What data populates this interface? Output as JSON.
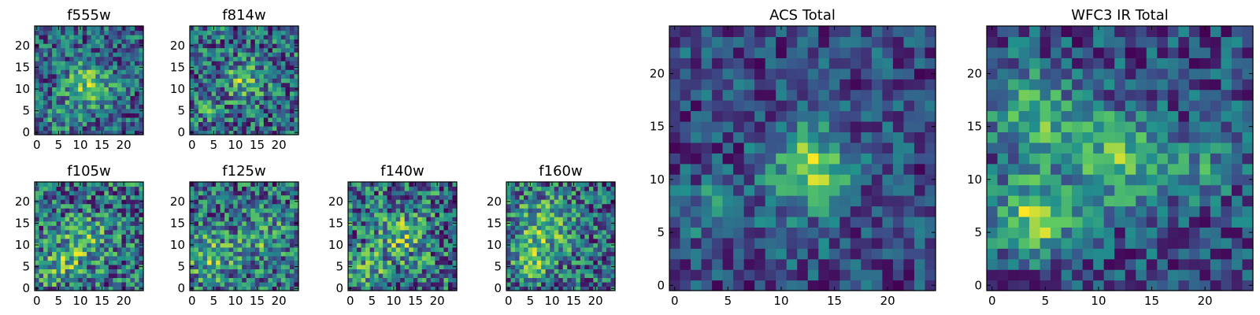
{
  "figure": {
    "colormap": "viridis",
    "colormap_stops": [
      "#440154",
      "#3b528b",
      "#21908d",
      "#5dc963",
      "#fde725"
    ]
  },
  "chart_data": [
    {
      "type": "heatmap",
      "title": "f555w",
      "grid_size": 25,
      "xlim": [
        -0.5,
        24.5
      ],
      "ylim": [
        -0.5,
        24.5
      ],
      "xticks": [
        0,
        5,
        10,
        15,
        20
      ],
      "yticks": [
        0,
        5,
        10,
        15,
        20
      ],
      "xticklabels": [
        "0",
        "5",
        "10",
        "15",
        "20"
      ],
      "yticklabels": [
        "0",
        "5",
        "10",
        "15",
        "20"
      ],
      "seed": 11,
      "noise": 0.55,
      "blobs": [
        [
          12,
          11,
          4,
          0.6
        ],
        [
          5,
          3,
          3,
          0.25
        ]
      ]
    },
    {
      "type": "heatmap",
      "title": "f814w",
      "grid_size": 25,
      "xlim": [
        -0.5,
        24.5
      ],
      "ylim": [
        -0.5,
        24.5
      ],
      "xticks": [
        0,
        5,
        10,
        15,
        20
      ],
      "yticks": [
        0,
        5,
        10,
        15,
        20
      ],
      "xticklabels": [
        "0",
        "5",
        "10",
        "15",
        "20"
      ],
      "yticklabels": [
        "0",
        "5",
        "10",
        "15",
        "20"
      ],
      "seed": 23,
      "noise": 0.55,
      "blobs": [
        [
          12,
          12,
          3,
          0.45
        ],
        [
          3,
          6,
          2,
          0.3
        ]
      ]
    },
    {
      "type": "heatmap",
      "title": "f105w",
      "grid_size": 25,
      "xlim": [
        -0.5,
        24.5
      ],
      "ylim": [
        -0.5,
        24.5
      ],
      "xticks": [
        0,
        5,
        10,
        15,
        20
      ],
      "yticks": [
        0,
        5,
        10,
        15,
        20
      ],
      "xticklabels": [
        "0",
        "5",
        "10",
        "15",
        "20"
      ],
      "yticklabels": [
        "0",
        "5",
        "10",
        "15",
        "20"
      ],
      "seed": 37,
      "noise": 0.6,
      "blobs": [
        [
          11,
          11,
          4,
          0.35
        ],
        [
          5,
          5,
          3,
          0.35
        ]
      ]
    },
    {
      "type": "heatmap",
      "title": "f125w",
      "grid_size": 25,
      "xlim": [
        -0.5,
        24.5
      ],
      "ylim": [
        -0.5,
        24.5
      ],
      "xticks": [
        0,
        5,
        10,
        15,
        20
      ],
      "yticks": [
        0,
        5,
        10,
        15,
        20
      ],
      "xticklabels": [
        "0",
        "5",
        "10",
        "15",
        "20"
      ],
      "yticklabels": [
        "0",
        "5",
        "10",
        "15",
        "20"
      ],
      "seed": 41,
      "noise": 0.6,
      "blobs": [
        [
          4,
          7,
          4,
          0.4
        ],
        [
          16,
          12,
          4,
          0.3
        ]
      ]
    },
    {
      "type": "heatmap",
      "title": "f140w",
      "grid_size": 25,
      "xlim": [
        -0.5,
        24.5
      ],
      "ylim": [
        -0.5,
        24.5
      ],
      "xticks": [
        0,
        5,
        10,
        15,
        20
      ],
      "yticks": [
        0,
        5,
        10,
        15,
        20
      ],
      "xticklabels": [
        "0",
        "5",
        "10",
        "15",
        "20"
      ],
      "yticklabels": [
        "0",
        "5",
        "10",
        "15",
        "20"
      ],
      "seed": 53,
      "noise": 0.6,
      "blobs": [
        [
          12,
          12,
          4,
          0.35
        ],
        [
          4,
          4,
          3,
          0.3
        ]
      ]
    },
    {
      "type": "heatmap",
      "title": "f160w",
      "grid_size": 25,
      "xlim": [
        -0.5,
        24.5
      ],
      "ylim": [
        -0.5,
        24.5
      ],
      "xticks": [
        0,
        5,
        10,
        15,
        20
      ],
      "yticks": [
        0,
        5,
        10,
        15,
        20
      ],
      "xticklabels": [
        "0",
        "5",
        "10",
        "15",
        "20"
      ],
      "yticklabels": [
        "0",
        "5",
        "10",
        "15",
        "20"
      ],
      "seed": 67,
      "noise": 0.55,
      "blobs": [
        [
          8,
          14,
          5,
          0.45
        ],
        [
          5,
          5,
          3,
          0.3
        ]
      ]
    },
    {
      "type": "heatmap",
      "title": "ACS Total",
      "grid_size": 25,
      "xlim": [
        -0.5,
        24.5
      ],
      "ylim": [
        -0.5,
        24.5
      ],
      "xticks": [
        0,
        5,
        10,
        15,
        20
      ],
      "yticks": [
        0,
        5,
        10,
        15,
        20
      ],
      "xticklabels": [
        "0",
        "5",
        "10",
        "15",
        "20"
      ],
      "yticklabels": [
        "0",
        "5",
        "10",
        "15",
        "20"
      ],
      "seed": 79,
      "noise": 0.5,
      "blobs": [
        [
          13,
          11.5,
          2.5,
          0.8
        ],
        [
          3,
          7,
          2,
          0.45
        ],
        [
          12,
          9,
          3,
          0.3
        ]
      ]
    },
    {
      "type": "heatmap",
      "title": "WFC3 IR Total",
      "grid_size": 25,
      "xlim": [
        -0.5,
        24.5
      ],
      "ylim": [
        -0.5,
        24.5
      ],
      "xticks": [
        0,
        5,
        10,
        15,
        20
      ],
      "yticks": [
        0,
        5,
        10,
        15,
        20
      ],
      "xticklabels": [
        "0",
        "5",
        "10",
        "15",
        "20"
      ],
      "yticklabels": [
        "0",
        "5",
        "10",
        "15",
        "20"
      ],
      "seed": 97,
      "noise": 0.4,
      "blobs": [
        [
          4,
          6.5,
          2.5,
          0.75
        ],
        [
          12,
          12,
          3,
          0.6
        ],
        [
          4,
          16,
          3,
          0.5
        ],
        [
          20,
          11,
          2,
          0.3
        ]
      ]
    }
  ]
}
